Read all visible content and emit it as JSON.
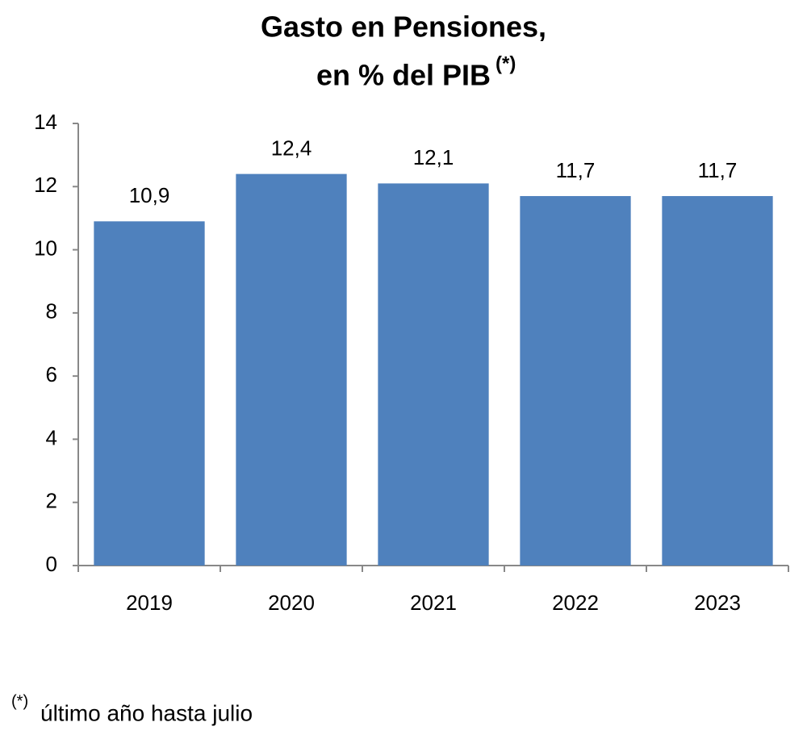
{
  "chart_data": {
    "type": "bar",
    "title": "Gasto en Pensiones,",
    "subtitle": "en % del PIB",
    "title_mark": "(*)",
    "categories": [
      "2019",
      "2020",
      "2021",
      "2022",
      "2023"
    ],
    "values": [
      10.9,
      12.4,
      12.1,
      11.7,
      11.7
    ],
    "value_labels": [
      "10,9",
      "12,4",
      "12,1",
      "11,7",
      "11,7"
    ],
    "color": "#4f81bd",
    "ylim": [
      0,
      14
    ],
    "yticks": [
      0,
      2,
      4,
      6,
      8,
      10,
      12,
      14
    ],
    "grid": false,
    "footnote_mark": "(*)",
    "footnote": "último año hasta julio"
  }
}
